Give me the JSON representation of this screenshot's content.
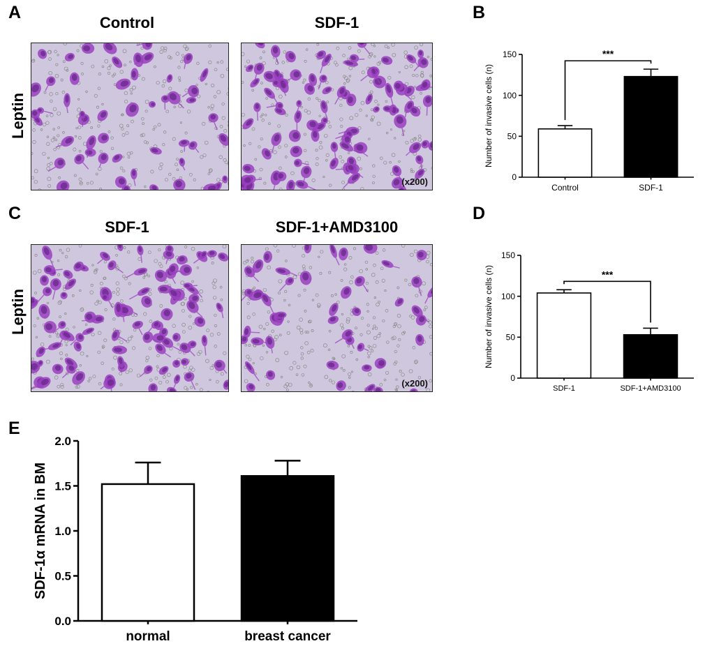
{
  "panels": {
    "A": {
      "letter": "A",
      "row_label": "Leptin",
      "images": [
        {
          "title": "Control",
          "density": 0.55,
          "magnification": ""
        },
        {
          "title": "SDF-1",
          "density": 1.0,
          "magnification": "(x200)"
        }
      ]
    },
    "C": {
      "letter": "C",
      "row_label": "Leptin",
      "images": [
        {
          "title": "SDF-1",
          "density": 1.0,
          "magnification": ""
        },
        {
          "title": "SDF-1+AMD3100",
          "density": 0.5,
          "magnification": "(x200)"
        }
      ]
    }
  },
  "stain_colors": {
    "background": "#cfc7de",
    "cell": "#9a3fc0",
    "cell_dark": "#6d2890",
    "debris": "#8a8a8a"
  },
  "chart_data": [
    {
      "panel": "B",
      "type": "bar",
      "categories": [
        "Control",
        "SDF-1"
      ],
      "values": [
        59,
        123
      ],
      "errors": [
        4,
        9
      ],
      "bar_fill": [
        "#ffffff",
        "#000000"
      ],
      "ylabel": "Number of invasive cells (n)",
      "xlabel": "",
      "ylim": [
        0,
        150
      ],
      "yticks": [
        0,
        50,
        100,
        150
      ],
      "significance": "***"
    },
    {
      "panel": "D",
      "type": "bar",
      "categories": [
        "SDF-1",
        "SDF-1+AMD3100"
      ],
      "values": [
        104,
        53
      ],
      "errors": [
        4,
        8
      ],
      "bar_fill": [
        "#ffffff",
        "#000000"
      ],
      "ylabel": "Number of invasive cells (n)",
      "xlabel": "",
      "ylim": [
        0,
        150
      ],
      "yticks": [
        0,
        50,
        100,
        150
      ],
      "significance": "***"
    },
    {
      "panel": "E",
      "type": "bar",
      "categories": [
        "normal",
        "breast cancer"
      ],
      "values": [
        1.52,
        1.61
      ],
      "errors": [
        0.24,
        0.17
      ],
      "bar_fill": [
        "#ffffff",
        "#000000"
      ],
      "ylabel": "SDF-1α mRNA in BM",
      "xlabel": "",
      "ylim": [
        0,
        2.0
      ],
      "yticks": [
        "0.0",
        "0.5",
        "1.0",
        "1.5",
        "2.0"
      ],
      "significance": ""
    }
  ]
}
